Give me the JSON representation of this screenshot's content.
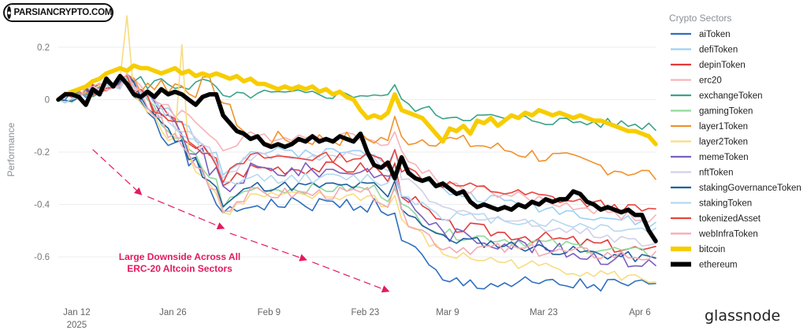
{
  "watermark": {
    "text": "PARSIANCRYPTO.COM"
  },
  "brand": {
    "name": "glassnode"
  },
  "chart_data": {
    "type": "line",
    "title": "",
    "xlabel": "",
    "ylabel": "Performance",
    "ylim": [
      -0.75,
      0.32
    ],
    "xlim": [
      0,
      87
    ],
    "yticks": [
      0.2,
      0,
      -0.2,
      -0.4,
      -0.6
    ],
    "ytick_labels": [
      "0.2",
      "0",
      "-0.2",
      "-0.4",
      "-0.6"
    ],
    "xticks": [
      {
        "x": 2,
        "label": "Jan 12",
        "sub": "2025"
      },
      {
        "x": 16,
        "label": "Jan 26"
      },
      {
        "x": 30,
        "label": "Feb 9"
      },
      {
        "x": 44,
        "label": "Feb 23"
      },
      {
        "x": 56,
        "label": "Mar 9"
      },
      {
        "x": 70,
        "label": "Mar 23"
      },
      {
        "x": 84,
        "label": "Apr 6"
      }
    ],
    "legend_title": "Crypto Sectors",
    "legend_position": "right",
    "annotation": {
      "lines": [
        "Large Downside Across All",
        "ERC-20 Altcoin Sectors"
      ],
      "color": "#e6195e"
    },
    "arrows": [
      {
        "from": [
          5,
          -0.19
        ],
        "to": [
          12,
          -0.36
        ]
      },
      {
        "from": [
          13,
          -0.37
        ],
        "to": [
          24,
          -0.49
        ]
      },
      {
        "from": [
          25,
          -0.51
        ],
        "to": [
          36,
          -0.61
        ]
      },
      {
        "from": [
          37,
          -0.62
        ],
        "to": [
          48,
          -0.73
        ]
      }
    ],
    "series": [
      {
        "name": "aiToken",
        "color": "#2f6fbf",
        "width": 2,
        "base": -0.4,
        "end": -0.715,
        "mid": -0.45,
        "noise": 0.03,
        "drop": 0.3,
        "seed": 1
      },
      {
        "name": "defiToken",
        "color": "#9ed0f5",
        "width": 2,
        "base": -0.2,
        "end": -0.48,
        "mid": -0.27,
        "noise": 0.02,
        "drop": 0.15,
        "seed": 2
      },
      {
        "name": "depinToken",
        "color": "#e33b3b",
        "width": 2,
        "base": -0.26,
        "end": -0.58,
        "mid": -0.32,
        "noise": 0.025,
        "drop": 0.22,
        "seed": 3
      },
      {
        "name": "erc20",
        "color": "#f6b3b8",
        "width": 2,
        "base": -0.14,
        "end": -0.46,
        "mid": -0.2,
        "noise": 0.02,
        "drop": 0.18,
        "seed": 4
      },
      {
        "name": "exchangeToken",
        "color": "#3aa38a",
        "width": 2,
        "base": 0.02,
        "end": -0.1,
        "mid": 0.0,
        "noise": 0.02,
        "drop": 0.08,
        "seed": 5
      },
      {
        "name": "gamingToken",
        "color": "#8fd99a",
        "width": 2,
        "base": -0.34,
        "end": -0.59,
        "mid": -0.4,
        "noise": 0.02,
        "drop": 0.17,
        "seed": 6
      },
      {
        "name": "layer1Token",
        "color": "#f0922a",
        "width": 2,
        "base": -0.15,
        "end": -0.29,
        "mid": -0.01,
        "noise": 0.03,
        "drop": 0.0,
        "seed": 7
      },
      {
        "name": "layer2Token",
        "color": "#f7dc82",
        "width": 2,
        "base": -0.37,
        "end": -0.69,
        "mid": -0.44,
        "noise": 0.02,
        "drop": 0.22,
        "seed": 8
      },
      {
        "name": "memeToken",
        "color": "#7b5fbf",
        "width": 2,
        "base": -0.27,
        "end": -0.63,
        "mid": -0.36,
        "noise": 0.03,
        "drop": 0.24,
        "seed": 9
      },
      {
        "name": "nftToken",
        "color": "#d0d0ea",
        "width": 2,
        "base": -0.22,
        "end": -0.55,
        "mid": -0.29,
        "noise": 0.02,
        "drop": 0.2,
        "seed": 10
      },
      {
        "name": "stakingGovernanceToken",
        "color": "#1f5f9f",
        "width": 2,
        "base": -0.33,
        "end": -0.61,
        "mid": -0.41,
        "noise": 0.02,
        "drop": 0.2,
        "seed": 11
      },
      {
        "name": "stakingToken",
        "color": "#b3d9f2",
        "width": 2,
        "base": -0.3,
        "end": -0.5,
        "mid": -0.33,
        "noise": 0.02,
        "drop": 0.14,
        "seed": 12
      },
      {
        "name": "tokenizedAsset",
        "color": "#e8453c",
        "width": 2,
        "base": -0.22,
        "end": -0.43,
        "mid": -0.3,
        "noise": 0.02,
        "drop": 0.1,
        "seed": 13
      },
      {
        "name": "webInfraToken",
        "color": "#f3a9b2",
        "width": 2,
        "base": -0.36,
        "end": -0.6,
        "mid": -0.42,
        "noise": 0.025,
        "drop": 0.2,
        "seed": 14
      },
      {
        "name": "bitcoin",
        "color": "#f7cd00",
        "width": 5,
        "base": 0.1,
        "end": -0.17,
        "mid": 0.07,
        "noise": 0.01,
        "drop": 0.1,
        "seed": 15
      },
      {
        "name": "ethereum",
        "color": "#000000",
        "width": 5,
        "base": -0.17,
        "end": -0.535,
        "mid": -0.28,
        "noise": 0.012,
        "drop": 0.1,
        "seed": 16
      }
    ],
    "ethereum_points": [
      0,
      0.02,
      0.02,
      0.01,
      -0.02,
      0.04,
      0.02,
      0.08,
      0.05,
      0.09,
      0.06,
      0.02,
      0.01,
      0.03,
      0.01,
      0.04,
      0.02,
      0.03,
      0.02,
      0.0,
      -0.02,
      0.01,
      0.02,
      0.02,
      -0.06,
      -0.09,
      -0.12,
      -0.13,
      -0.15,
      -0.14,
      -0.17,
      -0.18,
      -0.17,
      -0.18,
      -0.17,
      -0.15,
      -0.16,
      -0.14,
      -0.16,
      -0.15,
      -0.16,
      -0.14,
      -0.15,
      -0.16,
      -0.13,
      -0.2,
      -0.25,
      -0.26,
      -0.24,
      -0.3,
      -0.22,
      -0.28,
      -0.3,
      -0.31,
      -0.3,
      -0.33,
      -0.32,
      -0.34,
      -0.36,
      -0.35,
      -0.39,
      -0.41,
      -0.4,
      -0.41,
      -0.42,
      -0.41,
      -0.42,
      -0.4,
      -0.41,
      -0.39,
      -0.4,
      -0.38,
      -0.39,
      -0.38,
      -0.38,
      -0.35,
      -0.36,
      -0.39,
      -0.4,
      -0.42,
      -0.41,
      -0.42,
      -0.43,
      -0.42,
      -0.44,
      -0.44,
      -0.5,
      -0.54
    ],
    "bitcoin_points": [
      0,
      0.02,
      0.03,
      0.04,
      0.05,
      0.07,
      0.08,
      0.1,
      0.11,
      0.12,
      0.11,
      0.13,
      0.12,
      0.12,
      0.11,
      0.1,
      0.11,
      0.12,
      0.1,
      0.11,
      0.09,
      0.1,
      0.09,
      0.1,
      0.09,
      0.08,
      0.09,
      0.07,
      0.08,
      0.06,
      0.06,
      0.05,
      0.04,
      0.05,
      0.04,
      0.05,
      0.04,
      0.05,
      0.03,
      0.04,
      0.02,
      0.03,
      0.01,
      0.0,
      -0.04,
      -0.07,
      -0.06,
      -0.07,
      -0.05,
      0.02,
      -0.04,
      -0.05,
      -0.06,
      -0.07,
      -0.1,
      -0.13,
      -0.16,
      -0.11,
      -0.12,
      -0.1,
      -0.13,
      -0.08,
      -0.09,
      -0.07,
      -0.1,
      -0.08,
      -0.06,
      -0.07,
      -0.05,
      -0.06,
      -0.04,
      -0.05,
      -0.06,
      -0.05,
      -0.06,
      -0.07,
      -0.06,
      -0.07,
      -0.08,
      -0.08,
      -0.09,
      -0.1,
      -0.11,
      -0.12,
      -0.12,
      -0.13,
      -0.14,
      -0.17
    ],
    "spikes": [
      {
        "series": "layer2Token",
        "x": 10,
        "y": 0.32
      },
      {
        "series": "layer2Token",
        "x": 18,
        "y": 0.21
      }
    ]
  }
}
